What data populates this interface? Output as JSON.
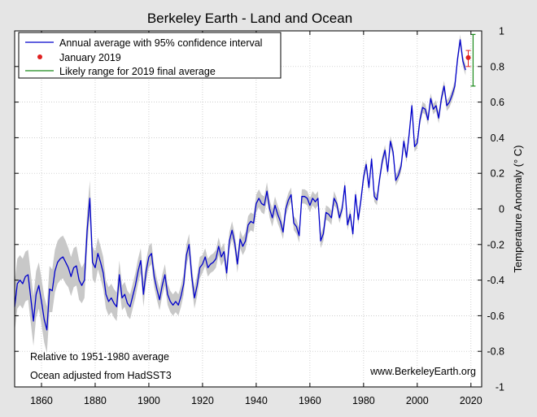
{
  "chart_data": {
    "type": "line",
    "title": "Berkeley Earth - Land and Ocean",
    "xlabel": "",
    "ylabel": "Temperature Anomaly (° C)",
    "xlim": [
      1850,
      2024
    ],
    "ylim": [
      -1,
      1
    ],
    "x_ticks": [
      1860,
      1880,
      1900,
      1920,
      1940,
      1960,
      1980,
      2000,
      2020
    ],
    "y_ticks": [
      -1,
      -0.8,
      -0.6,
      -0.4,
      -0.2,
      0,
      0.2,
      0.4,
      0.6,
      0.8,
      1
    ],
    "y_tick_labels": [
      "-1",
      "-0.8",
      "-0.6",
      "-0.4",
      "-0.2",
      "0",
      "0.2",
      "0.4",
      "0.6",
      "0.8",
      "1"
    ],
    "grid": true,
    "legend_position": "top-left",
    "legend": [
      {
        "label": "Annual average with 95% confidence interval",
        "kind": "line",
        "color": "#0000cc"
      },
      {
        "label": "January 2019",
        "kind": "point",
        "color": "#e02020"
      },
      {
        "label": "Likely range for 2019 final average",
        "kind": "line",
        "color": "#1a8a1a"
      }
    ],
    "annotations": {
      "baseline": "Relative to 1951-1980 average",
      "ocean": "Ocean adjusted from HadSST3",
      "website": "www.BerkeleyEarth.org"
    },
    "series": [
      {
        "name": "Annual average with 95% confidence interval",
        "color": "#0000cc",
        "band_color": "#c8c8c8",
        "x": [
          1850,
          1851,
          1852,
          1853,
          1854,
          1855,
          1856,
          1857,
          1858,
          1859,
          1860,
          1861,
          1862,
          1863,
          1864,
          1865,
          1866,
          1867,
          1868,
          1869,
          1870,
          1871,
          1872,
          1873,
          1874,
          1875,
          1876,
          1877,
          1878,
          1879,
          1880,
          1881,
          1882,
          1883,
          1884,
          1885,
          1886,
          1887,
          1888,
          1889,
          1890,
          1891,
          1892,
          1893,
          1894,
          1895,
          1896,
          1897,
          1898,
          1899,
          1900,
          1901,
          1902,
          1903,
          1904,
          1905,
          1906,
          1907,
          1908,
          1909,
          1910,
          1911,
          1912,
          1913,
          1914,
          1915,
          1916,
          1917,
          1918,
          1919,
          1920,
          1921,
          1922,
          1923,
          1924,
          1925,
          1926,
          1927,
          1928,
          1929,
          1930,
          1931,
          1932,
          1933,
          1934,
          1935,
          1936,
          1937,
          1938,
          1939,
          1940,
          1941,
          1942,
          1943,
          1944,
          1945,
          1946,
          1947,
          1948,
          1949,
          1950,
          1951,
          1952,
          1953,
          1954,
          1955,
          1956,
          1957,
          1958,
          1959,
          1960,
          1961,
          1962,
          1963,
          1964,
          1965,
          1966,
          1967,
          1968,
          1969,
          1970,
          1971,
          1972,
          1973,
          1974,
          1975,
          1976,
          1977,
          1978,
          1979,
          1980,
          1981,
          1982,
          1983,
          1984,
          1985,
          1986,
          1987,
          1988,
          1989,
          1990,
          1991,
          1992,
          1993,
          1994,
          1995,
          1996,
          1997,
          1998,
          1999,
          2000,
          2001,
          2002,
          2003,
          2004,
          2005,
          2006,
          2007,
          2008,
          2009,
          2010,
          2011,
          2012,
          2013,
          2014,
          2015,
          2016,
          2017,
          2018
        ],
        "y": [
          -0.55,
          -0.42,
          -0.4,
          -0.42,
          -0.38,
          -0.37,
          -0.5,
          -0.63,
          -0.48,
          -0.43,
          -0.52,
          -0.62,
          -0.68,
          -0.45,
          -0.46,
          -0.35,
          -0.3,
          -0.28,
          -0.27,
          -0.3,
          -0.33,
          -0.38,
          -0.33,
          -0.32,
          -0.4,
          -0.43,
          -0.4,
          -0.12,
          0.06,
          -0.3,
          -0.33,
          -0.25,
          -0.3,
          -0.36,
          -0.48,
          -0.52,
          -0.5,
          -0.53,
          -0.55,
          -0.37,
          -0.5,
          -0.48,
          -0.53,
          -0.55,
          -0.49,
          -0.43,
          -0.35,
          -0.29,
          -0.48,
          -0.35,
          -0.27,
          -0.25,
          -0.38,
          -0.45,
          -0.51,
          -0.43,
          -0.37,
          -0.48,
          -0.52,
          -0.54,
          -0.52,
          -0.54,
          -0.49,
          -0.42,
          -0.26,
          -0.2,
          -0.38,
          -0.5,
          -0.43,
          -0.33,
          -0.31,
          -0.27,
          -0.33,
          -0.31,
          -0.3,
          -0.28,
          -0.21,
          -0.27,
          -0.24,
          -0.36,
          -0.18,
          -0.12,
          -0.19,
          -0.31,
          -0.17,
          -0.21,
          -0.18,
          -0.09,
          -0.07,
          -0.08,
          0.03,
          0.06,
          0.03,
          0.02,
          0.1,
          0.0,
          -0.05,
          0.02,
          -0.03,
          -0.07,
          -0.13,
          0.0,
          0.05,
          0.08,
          -0.08,
          -0.1,
          -0.15,
          0.07,
          0.07,
          0.06,
          0.02,
          0.06,
          0.04,
          0.06,
          -0.18,
          -0.14,
          -0.02,
          -0.03,
          -0.05,
          0.06,
          0.03,
          -0.05,
          0.0,
          0.13,
          -0.09,
          -0.03,
          -0.14,
          0.08,
          -0.06,
          0.05,
          0.18,
          0.25,
          0.12,
          0.28,
          0.07,
          0.05,
          0.17,
          0.27,
          0.33,
          0.21,
          0.38,
          0.32,
          0.16,
          0.19,
          0.24,
          0.38,
          0.29,
          0.42,
          0.58,
          0.35,
          0.37,
          0.5,
          0.57,
          0.56,
          0.5,
          0.62,
          0.56,
          0.58,
          0.51,
          0.62,
          0.69,
          0.58,
          0.6,
          0.64,
          0.69,
          0.84,
          0.95,
          0.83,
          0.78
        ],
        "ci": [
          0.14,
          0.14,
          0.14,
          0.14,
          0.14,
          0.14,
          0.14,
          0.14,
          0.13,
          0.13,
          0.13,
          0.13,
          0.13,
          0.13,
          0.12,
          0.12,
          0.12,
          0.12,
          0.12,
          0.12,
          0.11,
          0.11,
          0.11,
          0.11,
          0.11,
          0.1,
          0.1,
          0.1,
          0.1,
          0.09,
          0.09,
          0.09,
          0.09,
          0.09,
          0.08,
          0.08,
          0.08,
          0.08,
          0.08,
          0.08,
          0.07,
          0.07,
          0.07,
          0.07,
          0.07,
          0.07,
          0.07,
          0.07,
          0.07,
          0.06,
          0.06,
          0.06,
          0.06,
          0.06,
          0.06,
          0.06,
          0.06,
          0.06,
          0.06,
          0.06,
          0.06,
          0.06,
          0.06,
          0.06,
          0.06,
          0.06,
          0.06,
          0.06,
          0.06,
          0.06,
          0.05,
          0.05,
          0.05,
          0.05,
          0.05,
          0.05,
          0.05,
          0.05,
          0.05,
          0.05,
          0.05,
          0.05,
          0.05,
          0.05,
          0.05,
          0.05,
          0.05,
          0.05,
          0.05,
          0.05,
          0.05,
          0.05,
          0.05,
          0.05,
          0.05,
          0.05,
          0.05,
          0.05,
          0.05,
          0.05,
          0.04,
          0.04,
          0.04,
          0.04,
          0.04,
          0.04,
          0.04,
          0.04,
          0.04,
          0.04,
          0.04,
          0.04,
          0.04,
          0.04,
          0.04,
          0.04,
          0.04,
          0.04,
          0.04,
          0.04,
          0.03,
          0.03,
          0.03,
          0.03,
          0.03,
          0.03,
          0.03,
          0.03,
          0.03,
          0.03,
          0.03,
          0.03,
          0.03,
          0.03,
          0.03,
          0.03,
          0.03,
          0.03,
          0.03,
          0.03,
          0.03,
          0.03,
          0.03,
          0.03,
          0.03,
          0.03,
          0.03,
          0.03,
          0.03,
          0.03,
          0.03,
          0.03,
          0.03,
          0.03,
          0.03,
          0.03,
          0.03,
          0.03,
          0.03,
          0.03,
          0.03,
          0.03,
          0.03,
          0.03,
          0.03,
          0.03,
          0.03,
          0.03,
          0.03
        ]
      }
    ],
    "january_2019": {
      "x": 2019,
      "y": 0.85,
      "err_low": 0.8,
      "err_high": 0.89,
      "color": "#e02020"
    },
    "likely_range_2019": {
      "x": 2020.8,
      "low": 0.69,
      "high": 0.98,
      "color": "#1a8a1a"
    }
  }
}
